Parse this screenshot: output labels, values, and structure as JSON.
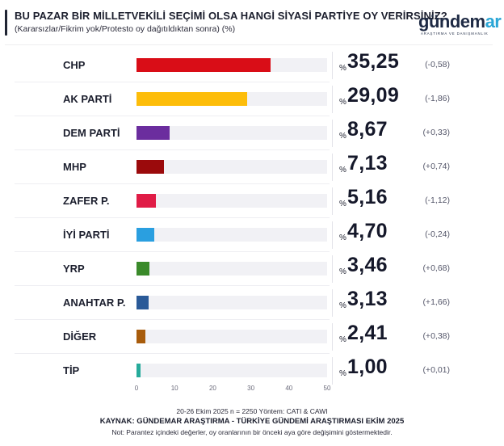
{
  "header": {
    "title": "BU PAZAR BİR MİLLETVEKİLİ SEÇİMİ OLSA HANGİ SİYASİ PARTİYE OY VERİRSİNİZ?",
    "subtitle": "(Kararsızlar/Fikrim yok/Protesto oy dağıtıldıktan sonra) (%)"
  },
  "logo": {
    "word_main": "gündem",
    "word_accent": "ar",
    "tagline": "ARAŞTIRMA VE DANIŞMANLIK",
    "accent_color": "#2aa6d6"
  },
  "chart_data": {
    "type": "bar",
    "orientation": "horizontal",
    "title": "BU PAZAR BİR MİLLETVEKİLİ SEÇİMİ OLSA HANGİ SİYASİ PARTİYE OY VERİRSİNİZ?",
    "subtitle": "(Kararsızlar/Fikrim yok/Protesto oy dağıtıldıktan sonra) (%)",
    "xlabel": "",
    "ylabel": "",
    "xlim": [
      0,
      50
    ],
    "xticks": [
      "0",
      "10",
      "20",
      "30",
      "40",
      "50"
    ],
    "percent_prefix": "%",
    "categories": [
      "CHP",
      "AK PARTİ",
      "DEM PARTİ",
      "MHP",
      "ZAFER P.",
      "İYİ PARTİ",
      "YRP",
      "ANAHTAR P.",
      "DİĞER",
      "TİP"
    ],
    "values": [
      35.25,
      29.09,
      8.67,
      7.13,
      5.16,
      4.7,
      3.46,
      3.13,
      2.41,
      1.0
    ],
    "value_labels": [
      "35,25",
      "29,09",
      "8,67",
      "7,13",
      "5,16",
      "4,70",
      "3,46",
      "3,13",
      "2,41",
      "1,00"
    ],
    "changes": [
      "(-0,58)",
      "(-1,86)",
      "(+0,33)",
      "(+0,74)",
      "(-1,12)",
      "(-0,24)",
      "(+0,68)",
      "(+1,66)",
      "(+0,38)",
      "(+0,01)"
    ],
    "colors": [
      "#d90d17",
      "#fdbd0a",
      "#6b2d9e",
      "#9b0a0c",
      "#e01c46",
      "#2a9fe0",
      "#3a8a2a",
      "#2a5a98",
      "#a85c0c",
      "#26ab9b"
    ],
    "grid": false,
    "legend": "none"
  },
  "footer": {
    "line1": "20-26 Ekim 2025 n = 2250 Yöntem: CATI & CAWI",
    "line2": "KAYNAK: GÜNDEMAR ARAŞTIRMA - TÜRKİYE GÜNDEMİ ARAŞTIRMASI EKİM 2025",
    "line3": "Not: Parantez içindeki değerler, oy oranlarının bir önceki aya göre değişimini göstermektedir."
  }
}
